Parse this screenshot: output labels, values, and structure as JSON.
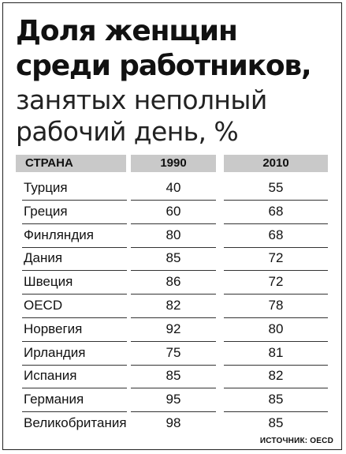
{
  "title_line1": "Доля женщин",
  "title_line2": "среди работников,",
  "title_line3": "занятых неполный",
  "title_line4": "рабочий день, %",
  "headers": [
    "СТРАНА",
    "1990",
    "2010"
  ],
  "source": "ИСТОЧНИК: OECD",
  "chart_data": {
    "type": "table",
    "columns": [
      "СТРАНА",
      "1990",
      "2010"
    ],
    "rows": [
      {
        "country": "Турция",
        "y1990": 40,
        "y2010": 55
      },
      {
        "country": "Греция",
        "y1990": 60,
        "y2010": 68
      },
      {
        "country": "Финляндия",
        "y1990": 80,
        "y2010": 68
      },
      {
        "country": "Дания",
        "y1990": 85,
        "y2010": 72
      },
      {
        "country": "Швеция",
        "y1990": 86,
        "y2010": 72
      },
      {
        "country": "OECD",
        "y1990": 82,
        "y2010": 78
      },
      {
        "country": "Норвегия",
        "y1990": 92,
        "y2010": 80
      },
      {
        "country": "Ирландия",
        "y1990": 75,
        "y2010": 81
      },
      {
        "country": "Испания",
        "y1990": 85,
        "y2010": 82
      },
      {
        "country": "Германия",
        "y1990": 95,
        "y2010": 85
      },
      {
        "country": "Великобритания",
        "y1990": 98,
        "y2010": 85
      }
    ]
  }
}
